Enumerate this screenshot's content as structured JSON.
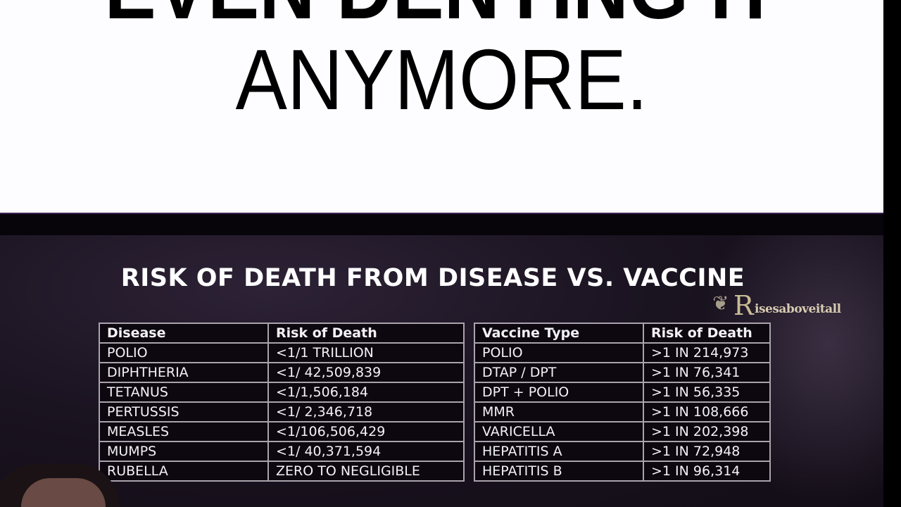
{
  "caption": {
    "line1": "EVEN DENYING IT",
    "line2": "ANYMORE."
  },
  "slide": {
    "title": "RISK OF DEATH FROM DISEASE VS. VACCINE",
    "watermark": "Risesaboveitall",
    "disease_table": {
      "headers": [
        "Disease",
        "Risk of Death"
      ],
      "rows": [
        [
          "POLIO",
          "<1/1 TRILLION"
        ],
        [
          "DIPHTHERIA",
          "<1/ 42,509,839"
        ],
        [
          "TETANUS",
          "<1/1,506,184"
        ],
        [
          "PERTUSSIS",
          "<1/ 2,346,718"
        ],
        [
          "MEASLES",
          "<1/106,506,429"
        ],
        [
          "MUMPS",
          "<1/ 40,371,594"
        ],
        [
          "RUBELLA",
          "ZERO TO NEGLIGIBLE"
        ]
      ]
    },
    "vaccine_table": {
      "headers": [
        "Vaccine Type",
        "Risk of Death"
      ],
      "rows": [
        [
          "POLIO",
          ">1 IN 214,973"
        ],
        [
          "DTAP / DPT",
          ">1 IN 76,341"
        ],
        [
          "DPT + POLIO",
          ">1 IN 56,335"
        ],
        [
          "MMR",
          ">1 IN 108,666"
        ],
        [
          "VARICELLA",
          ">1 IN 202,398"
        ],
        [
          "HEPATITIS A",
          ">1 IN 72,948"
        ],
        [
          "HEPATITIS B",
          ">1 IN 96,314"
        ]
      ]
    }
  }
}
